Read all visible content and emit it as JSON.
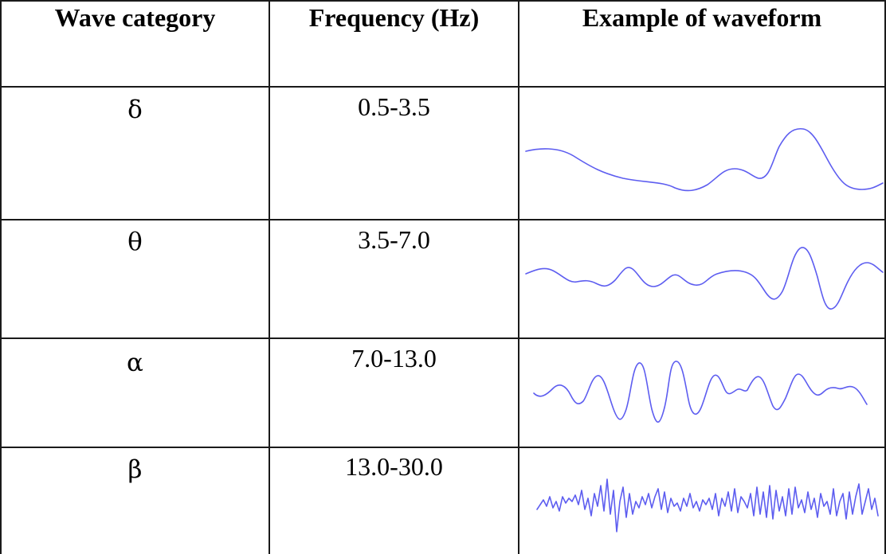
{
  "table": {
    "headers": [
      "Wave category",
      "Frequency (Hz)",
      "Example of waveform"
    ],
    "rows": [
      {
        "category": "δ",
        "frequency": "0.5-3.5",
        "waveform_icon": "delta-waveform"
      },
      {
        "category": "θ",
        "frequency": "3.5-7.0",
        "waveform_icon": "theta-waveform"
      },
      {
        "category": "α",
        "frequency": "7.0-13.0",
        "waveform_icon": "alpha-waveform"
      },
      {
        "category": "β",
        "frequency": "13.0-30.0",
        "waveform_icon": "beta-waveform"
      }
    ]
  },
  "colors": {
    "waveform": "#5d5df0",
    "grid": "#1a1a1a"
  }
}
